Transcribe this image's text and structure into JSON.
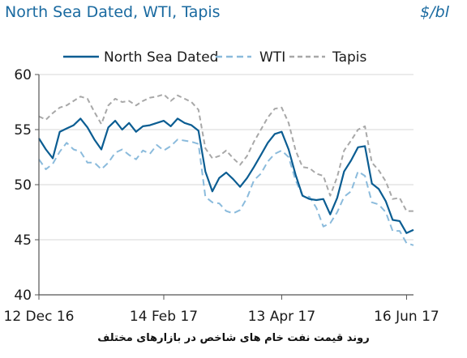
{
  "chart_data": {
    "type": "line",
    "title": "North Sea Dated, WTI, Tapis",
    "unit": "$/bl",
    "xlabel": "",
    "ylabel": "",
    "ylim": [
      40,
      60
    ],
    "yticks": [
      40,
      45,
      50,
      55,
      60
    ],
    "xtick_labels": [
      "12 Dec 16",
      "14 Feb 17",
      "13 Apr 17",
      "16 Jun 17"
    ],
    "legend_position": "top",
    "grid": true,
    "x": [
      "12 Dec 16",
      "15 Dec 16",
      "19 Dec 16",
      "22 Dec 16",
      "27 Dec 16",
      "30 Dec 16",
      "3 Jan 17",
      "6 Jan 17",
      "9 Jan 17",
      "12 Jan 17",
      "16 Jan 17",
      "19 Jan 17",
      "23 Jan 17",
      "26 Jan 17",
      "30 Jan 17",
      "2 Feb 17",
      "6 Feb 17",
      "9 Feb 17",
      "14 Feb 17",
      "17 Feb 17",
      "21 Feb 17",
      "24 Feb 17",
      "28 Feb 17",
      "3 Mar 17",
      "7 Mar 17",
      "10 Mar 17",
      "14 Mar 17",
      "17 Mar 17",
      "21 Mar 17",
      "24 Mar 17",
      "28 Mar 17",
      "31 Mar 17",
      "4 Apr 17",
      "7 Apr 17",
      "10 Apr 17",
      "13 Apr 17",
      "18 Apr 17",
      "21 Apr 17",
      "25 Apr 17",
      "28 Apr 17",
      "2 May 17",
      "5 May 17",
      "9 May 17",
      "12 May 17",
      "16 May 17",
      "19 May 17",
      "23 May 17",
      "26 May 17",
      "30 May 17",
      "2 Jun 17",
      "6 Jun 17",
      "9 Jun 17",
      "13 Jun 17",
      "16 Jun 17",
      "19 Jun 17"
    ],
    "series": [
      {
        "name": "North Sea Dated",
        "color": "#0b5d92",
        "dash": "solid",
        "values": [
          54.2,
          53.2,
          52.4,
          54.8,
          55.1,
          55.4,
          56.0,
          55.2,
          54.1,
          53.2,
          55.2,
          55.8,
          55.0,
          55.6,
          54.8,
          55.3,
          55.4,
          55.6,
          55.8,
          55.3,
          56.0,
          55.6,
          55.4,
          54.9,
          51.2,
          49.4,
          50.6,
          51.1,
          50.5,
          49.8,
          50.6,
          51.6,
          52.7,
          53.8,
          54.6,
          54.8,
          53.2,
          50.9,
          49.0,
          48.7,
          48.6,
          48.7,
          47.3,
          48.8,
          51.2,
          52.2,
          53.4,
          53.5,
          50.1,
          49.6,
          48.5,
          46.8,
          46.7,
          45.6,
          45.9
        ]
      },
      {
        "name": "WTI",
        "color": "#8bbbdc",
        "dash": "8,5",
        "values": [
          52.3,
          51.4,
          51.9,
          53.0,
          53.8,
          53.2,
          53.0,
          52.0,
          52.0,
          51.4,
          52.0,
          52.9,
          53.2,
          52.7,
          52.3,
          53.1,
          52.8,
          53.6,
          53.1,
          53.5,
          54.1,
          54.0,
          53.9,
          53.7,
          48.9,
          48.4,
          48.3,
          47.6,
          47.4,
          47.7,
          48.8,
          50.4,
          51.0,
          52.1,
          52.8,
          53.1,
          52.5,
          50.4,
          49.0,
          48.9,
          47.9,
          46.2,
          46.5,
          47.5,
          48.9,
          49.4,
          51.2,
          50.8,
          48.4,
          48.2,
          47.5,
          45.8,
          45.8,
          44.7,
          44.5
        ]
      },
      {
        "name": "Tapis",
        "color": "#a8a8a8",
        "dash": "6,4",
        "values": [
          56.2,
          55.9,
          56.5,
          57.0,
          57.2,
          57.6,
          58.0,
          57.8,
          56.6,
          55.5,
          57.2,
          57.8,
          57.5,
          57.6,
          57.2,
          57.6,
          57.9,
          58.0,
          58.2,
          57.6,
          58.1,
          57.8,
          57.5,
          56.8,
          53.3,
          52.4,
          52.6,
          53.1,
          52.4,
          51.8,
          52.6,
          53.9,
          55.0,
          56.1,
          56.9,
          57.0,
          55.6,
          53.1,
          51.6,
          51.5,
          51.0,
          50.8,
          49.0,
          50.7,
          53.1,
          54.0,
          55.0,
          55.3,
          52.0,
          51.3,
          50.3,
          48.7,
          48.8,
          47.6,
          47.6
        ]
      }
    ]
  },
  "caption": "روند قیمت نفت خام های شاخص در بازارهای مختلف"
}
